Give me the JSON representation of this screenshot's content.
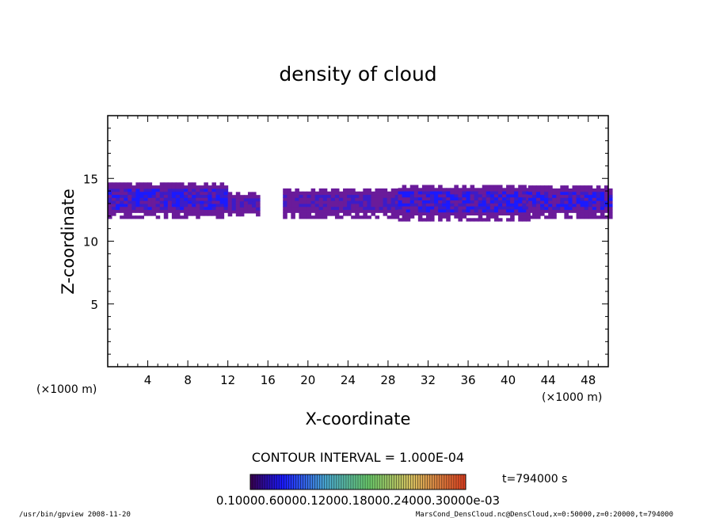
{
  "chart_data": {
    "type": "heatmap",
    "title": "density of cloud",
    "xlabel": "X-coordinate",
    "ylabel": "Z-coordinate",
    "x_unit": "(×1000 m)",
    "xlim": [
      0,
      50
    ],
    "ylim": [
      0,
      20
    ],
    "x_ticks": [
      "4",
      "8",
      "12",
      "16",
      "20",
      "24",
      "28",
      "32",
      "36",
      "40",
      "44",
      "48"
    ],
    "y_ticks": [
      "5",
      "10",
      "15"
    ],
    "contour_interval_label": "CONTOUR INTERVAL = 1.000E-04",
    "time_label": "t=794000  s",
    "colorbar_label": "0.10000.60000.12000.18000.24000.30000e-03",
    "footer_left": "/usr/bin/gpview   2008-11-20",
    "footer_right": "MarsCond_DensCloud.nc@DensCloud,x=0:50000,z=0:20000,t=794000",
    "colors": [
      "#6a1b9a",
      "#3c1cc8",
      "#1a1aff"
    ],
    "cloud_regions": [
      {
        "x0": 0.0,
        "x1": 12.0,
        "z0": 11.8,
        "z1": 14.6,
        "intensity": 2
      },
      {
        "x0": 12.0,
        "x1": 15.0,
        "z0": 12.0,
        "z1": 13.8,
        "intensity": 1
      },
      {
        "x0": 17.5,
        "x1": 29.0,
        "z0": 11.8,
        "z1": 14.2,
        "intensity": 1
      },
      {
        "x0": 29.0,
        "x1": 42.0,
        "z0": 11.6,
        "z1": 14.4,
        "intensity": 2
      },
      {
        "x0": 42.0,
        "x1": 50.0,
        "z0": 11.8,
        "z1": 14.4,
        "intensity": 2
      }
    ]
  }
}
